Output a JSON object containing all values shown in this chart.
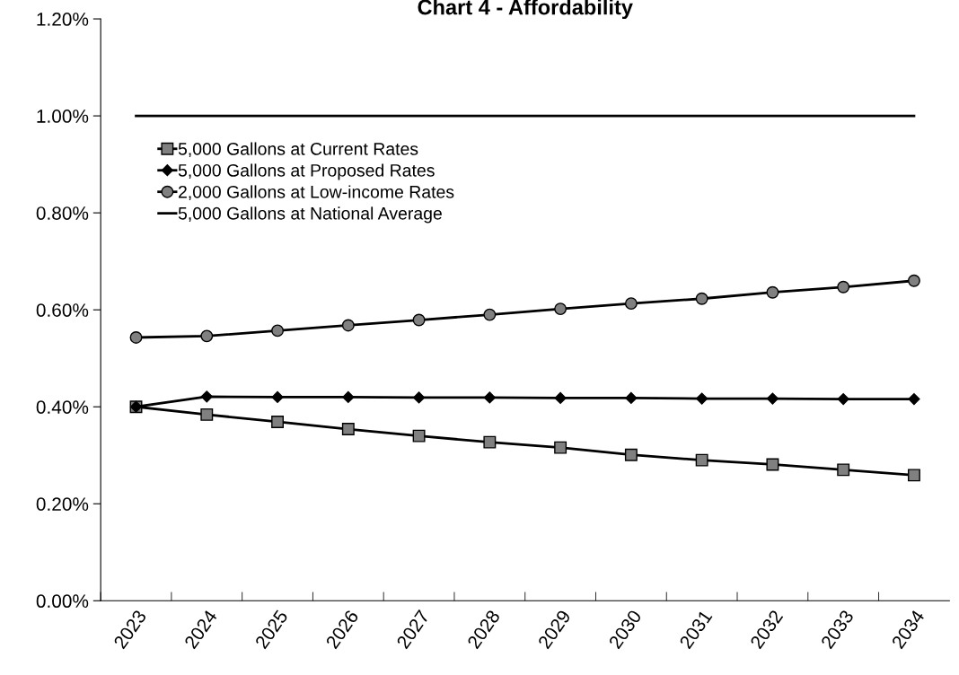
{
  "chart_data": {
    "type": "line",
    "title": "Chart 4 - Affordability",
    "categories": [
      "2023",
      "2024",
      "2025",
      "2026",
      "2027",
      "2028",
      "2029",
      "2030",
      "2031",
      "2032",
      "2033",
      "2034"
    ],
    "series": [
      {
        "name": "5,000 Gallons at Current Rates",
        "color": "#808080",
        "marker": "square",
        "values": [
          0.4,
          0.384,
          0.369,
          0.354,
          0.34,
          0.327,
          0.316,
          0.301,
          0.29,
          0.281,
          0.27,
          0.259
        ]
      },
      {
        "name": "5,000 Gallons at Proposed Rates",
        "color": "#000000",
        "marker": "diamond",
        "values": [
          0.4,
          0.421,
          0.42,
          0.42,
          0.419,
          0.419,
          0.418,
          0.418,
          0.417,
          0.417,
          0.416,
          0.416
        ]
      },
      {
        "name": "2,000 Gallons at Low-income Rates",
        "color": "#808080",
        "marker": "circle",
        "values": [
          0.543,
          0.546,
          0.557,
          0.568,
          0.579,
          0.59,
          0.602,
          0.613,
          0.623,
          0.636,
          0.647,
          0.66
        ]
      },
      {
        "name": "5,000 Gallons at National Average",
        "color": "#000000",
        "marker": "none",
        "values": [
          1.0,
          1.0,
          1.0,
          1.0,
          1.0,
          1.0,
          1.0,
          1.0,
          1.0,
          1.0,
          1.0,
          1.0
        ]
      }
    ],
    "ylim": [
      0,
      1.2
    ],
    "yticks": [
      {
        "value": 0,
        "label": "0.00%"
      },
      {
        "value": 0.2,
        "label": "0.20%"
      },
      {
        "value": 0.4,
        "label": "0.40%"
      },
      {
        "value": 0.6,
        "label": "0.60%"
      },
      {
        "value": 0.8,
        "label": "0.80%"
      },
      {
        "value": 1.0,
        "label": "1.00%"
      },
      {
        "value": 1.2,
        "label": "1.20%"
      }
    ],
    "legend": "top left",
    "grid": false
  }
}
